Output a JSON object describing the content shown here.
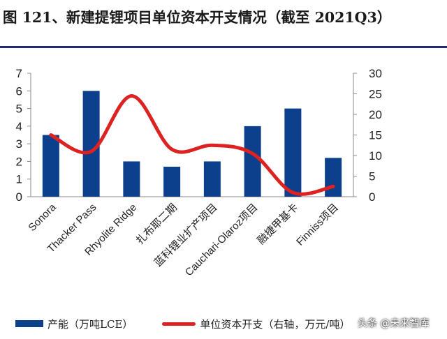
{
  "title": "图 121、新建提锂项目单位资本开支情况（截至 2021Q3）",
  "watermark": "头条 @未来智库",
  "legend": {
    "bar_label": "产能（万吨LCE）",
    "line_label": "单位资本开支（右轴，万元/吨）"
  },
  "colors": {
    "bar": "#0c3f8c",
    "line": "#dd2222",
    "rule": "#1f2d74"
  },
  "chart_data": {
    "type": "bar",
    "categories": [
      "Sonora",
      "Thacker Pass",
      "Rhyolite Ridge",
      "扎布耶二期",
      "蓝科锂业扩产项目",
      "Cauchari-Olaroz项目",
      "融捷甲基卡",
      "Finniss项目"
    ],
    "series": [
      {
        "name": "产能（万吨LCE）",
        "type": "bar",
        "axis": "left",
        "values": [
          3.5,
          6.0,
          2.0,
          1.7,
          2.0,
          4.0,
          5.0,
          2.2
        ]
      },
      {
        "name": "单位资本开支（右轴，万元/吨）",
        "type": "line",
        "axis": "right",
        "smooth": true,
        "values": [
          15.0,
          11.0,
          24.5,
          11.5,
          12.5,
          10.5,
          1.0,
          2.5
        ]
      }
    ],
    "y_left": {
      "range": [
        0,
        7
      ],
      "ticks": [
        "0",
        "1",
        "2",
        "3",
        "4",
        "5",
        "6",
        "7"
      ]
    },
    "y_right": {
      "range": [
        0,
        30
      ],
      "ticks": [
        "0",
        "5",
        "10",
        "15",
        "20",
        "25",
        "30"
      ]
    },
    "grid": false,
    "legend_position": "bottom"
  }
}
